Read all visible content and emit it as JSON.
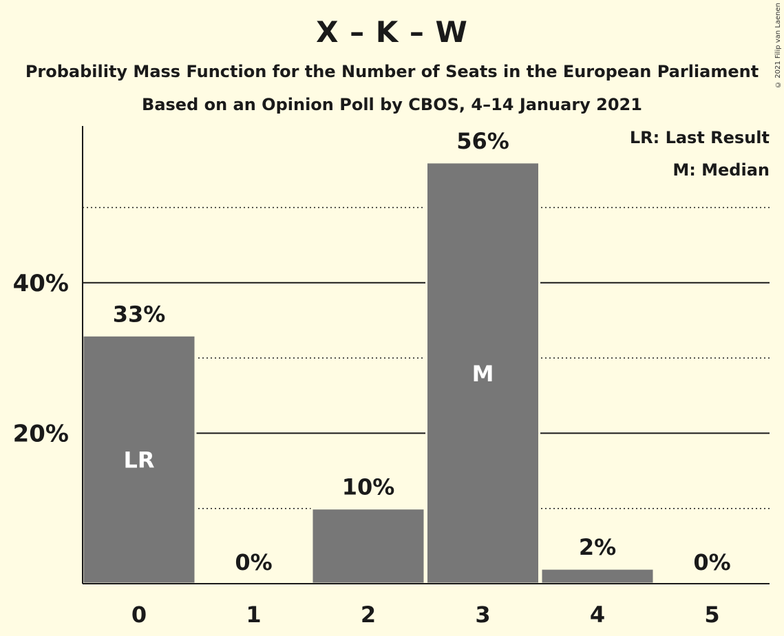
{
  "title": "X – K – W",
  "subtitle": "Probability Mass Function for the Number of Seats in the European Parliament",
  "subtitle2": "Based on an Opinion Poll by CBOS, 4–14 January 2021",
  "copyright": "© 2021 Filip van Laenen",
  "legend": {
    "last_result": "LR: Last Result",
    "median": "M: Median"
  },
  "colors": {
    "background": "#fffce3",
    "bar": "#777777",
    "text": "#1a1a1a"
  },
  "chart_data": {
    "type": "bar",
    "categories": [
      "0",
      "1",
      "2",
      "3",
      "4",
      "5"
    ],
    "values": [
      33,
      0,
      10,
      56,
      2,
      0
    ],
    "value_labels": [
      "33%",
      "0%",
      "10%",
      "56%",
      "2%",
      "0%"
    ],
    "bar_markers": [
      {
        "category": "0",
        "label": "LR"
      },
      {
        "category": "3",
        "label": "M"
      }
    ],
    "ylim": [
      0,
      61
    ],
    "y_ticks": [
      20,
      40
    ],
    "y_tick_labels": [
      "20%",
      "40%"
    ],
    "minor_gridlines": [
      10,
      30,
      50
    ],
    "xlabel": "",
    "ylabel": "",
    "grid": true
  }
}
